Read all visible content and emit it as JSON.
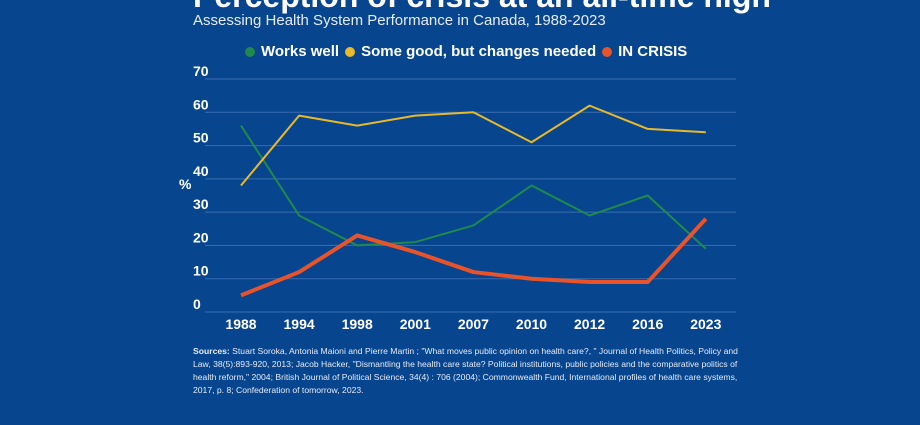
{
  "chart_data": {
    "type": "line",
    "title": "Perception of crisis at an all-time high",
    "subtitle": "Assessing Health System Performance in Canada, 1988-2023",
    "ylabel": "%",
    "xlabel": "",
    "ylim": [
      0,
      70
    ],
    "yticks": [
      0,
      10,
      20,
      30,
      40,
      50,
      60,
      70
    ],
    "grid": true,
    "legend_position": "top",
    "categories": [
      "1988",
      "1994",
      "1998",
      "2001",
      "2007",
      "2010",
      "2012",
      "2016",
      "2023"
    ],
    "series": [
      {
        "name": "Works well",
        "color": "#1f8a4c",
        "values": [
          56,
          29,
          20,
          21,
          26,
          38,
          29,
          35,
          19
        ]
      },
      {
        "name": "Some good, but changes needed",
        "color": "#e8b92a",
        "values": [
          38,
          59,
          56,
          59,
          60,
          51,
          62,
          55,
          54
        ]
      },
      {
        "name": "IN CRISIS",
        "color": "#e8532a",
        "values": [
          5,
          12,
          23,
          18,
          12,
          10,
          9,
          9,
          28
        ]
      }
    ]
  },
  "sources": {
    "label": "Sources:",
    "text": " Stuart Soroka, Antonia Maioni and Pierre Martin ; \"What moves public opinion on health care?, \" Journal of Health Politics, Policy and Law, 38(5):893-920, 2013; Jacob Hacker, \"Dismantling the health care state? Political institutions, public policies and the comparative politics of health reform,\" 2004; British Journal of Political Science, 34(4) : 706 (2004); Commonwealth Fund, International profiles of health care systems, 2017, p. 8; Confederation of tomorrow, 2023."
  }
}
